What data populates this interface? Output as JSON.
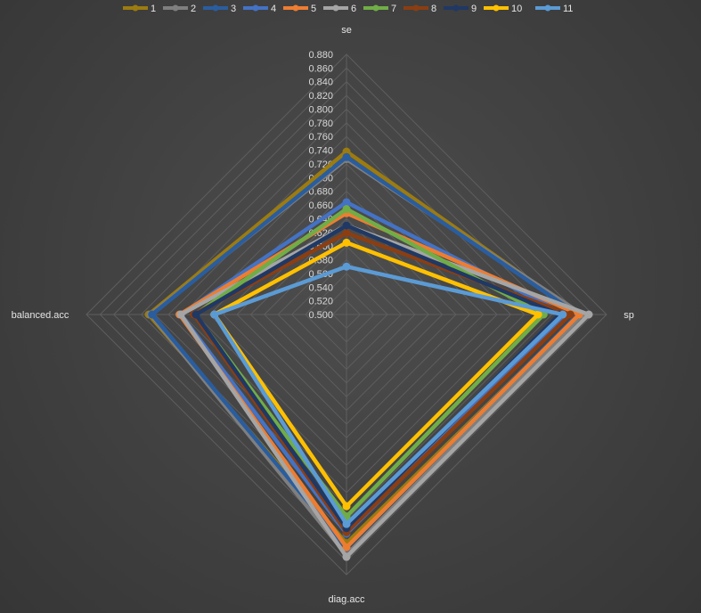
{
  "chart_data": {
    "type": "radar",
    "axes": [
      "se",
      "sp",
      "diag.acc",
      "balanced.acc"
    ],
    "rlim": [
      0.5,
      0.88
    ],
    "tick_step": 0.02,
    "ticks": [
      "0.500",
      "0.520",
      "0.540",
      "0.560",
      "0.580",
      "0.600",
      "0.620",
      "0.640",
      "0.660",
      "0.680",
      "0.700",
      "0.720",
      "0.740",
      "0.760",
      "0.780",
      "0.800",
      "0.820",
      "0.840",
      "0.860",
      "0.880"
    ],
    "legend_position": "top",
    "grid": true,
    "series": [
      {
        "name": "1",
        "color": "#9c7b10",
        "values": [
          0.738,
          0.84,
          0.834,
          0.789
        ]
      },
      {
        "name": "2",
        "color": "#7f7f7f",
        "values": [
          0.727,
          0.845,
          0.851,
          0.786
        ]
      },
      {
        "name": "3",
        "color": "#2a5d9e",
        "values": [
          0.73,
          0.838,
          0.841,
          0.784
        ]
      },
      {
        "name": "4",
        "color": "#4472c4",
        "values": [
          0.664,
          0.82,
          0.82,
          0.742
        ]
      },
      {
        "name": "5",
        "color": "#ed7d31",
        "values": [
          0.648,
          0.84,
          0.84,
          0.744
        ]
      },
      {
        "name": "6",
        "color": "#a5a5a5",
        "values": [
          0.63,
          0.854,
          0.854,
          0.742
        ]
      },
      {
        "name": "7",
        "color": "#70ad47",
        "values": [
          0.654,
          0.788,
          0.795,
          0.721
        ]
      },
      {
        "name": "8",
        "color": "#8b3e12",
        "values": [
          0.619,
          0.827,
          0.818,
          0.723
        ]
      },
      {
        "name": "9",
        "color": "#203864",
        "values": [
          0.63,
          0.811,
          0.812,
          0.72
        ]
      },
      {
        "name": "10",
        "color": "#ffc000",
        "values": [
          0.605,
          0.78,
          0.78,
          0.693
        ]
      },
      {
        "name": "11",
        "color": "#5b9bd5",
        "values": [
          0.57,
          0.816,
          0.806,
          0.693
        ]
      }
    ]
  }
}
